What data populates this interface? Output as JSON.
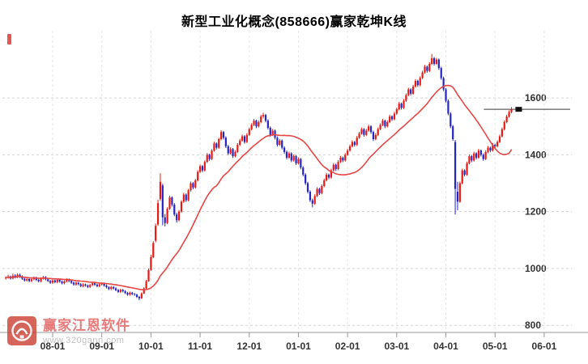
{
  "title": "新型工业化概念(858666)赢家乾坤K线",
  "watermark": {
    "brand": "赢家江恩软件",
    "url": "www.320gann.com"
  },
  "colors": {
    "up": "#e51a14",
    "down": "#2525c4",
    "ma": "#e84545",
    "grid": "#d2d2d2",
    "grid_vertical": "#e7e7e7",
    "axis": "#999999",
    "label": "#333333",
    "last_price_line": "#3a3a3a",
    "last_price_marker": "#111111",
    "corner_mark": "#df3a2e"
  },
  "chart_data": {
    "type": "candlestick",
    "title": "新型工业化概念(858666)赢家乾坤K线",
    "y_ticks": [
      800,
      1000,
      1200,
      1400,
      1600
    ],
    "ylim": [
      775,
      1845
    ],
    "grid": "dashed",
    "legend_position": "none",
    "overlay_line": "smoothed moving average (red)",
    "ma_period": 24,
    "last_price": 1560,
    "x_ticks": [
      {
        "label": "08-01",
        "slot": 20
      },
      {
        "label": "09-01",
        "slot": 41
      },
      {
        "label": "10-01",
        "slot": 62
      },
      {
        "label": "11-01",
        "slot": 83
      },
      {
        "label": "12-01",
        "slot": 104
      },
      {
        "label": "01-01",
        "slot": 125
      },
      {
        "label": "02-01",
        "slot": 146
      },
      {
        "label": "03-01",
        "slot": 167
      },
      {
        "label": "04-01",
        "slot": 188
      },
      {
        "label": "05-01",
        "slot": 209
      },
      {
        "label": "06-01",
        "slot": 230
      }
    ],
    "candles": [
      [
        965,
        972,
        961,
        968
      ],
      [
        968,
        978,
        964,
        972
      ],
      [
        972,
        975,
        961,
        965
      ],
      [
        965,
        982,
        962,
        975
      ],
      [
        975,
        980,
        965,
        970
      ],
      [
        970,
        983,
        966,
        978
      ],
      [
        978,
        982,
        967,
        971
      ],
      [
        971,
        976,
        960,
        964
      ],
      [
        964,
        969,
        954,
        958
      ],
      [
        958,
        968,
        954,
        963
      ],
      [
        963,
        967,
        952,
        956
      ],
      [
        956,
        966,
        952,
        962
      ],
      [
        962,
        972,
        958,
        968
      ],
      [
        968,
        971,
        956,
        960
      ],
      [
        960,
        965,
        951,
        955
      ],
      [
        955,
        969,
        951,
        965
      ],
      [
        965,
        974,
        961,
        970
      ],
      [
        970,
        973,
        958,
        962
      ],
      [
        962,
        967,
        952,
        956
      ],
      [
        956,
        960,
        946,
        950
      ],
      [
        950,
        962,
        946,
        958
      ],
      [
        958,
        961,
        948,
        952
      ],
      [
        952,
        964,
        948,
        960
      ],
      [
        960,
        963,
        950,
        954
      ],
      [
        954,
        958,
        944,
        948
      ],
      [
        948,
        959,
        944,
        955
      ],
      [
        955,
        966,
        951,
        962
      ],
      [
        962,
        965,
        952,
        956
      ],
      [
        956,
        960,
        946,
        950
      ],
      [
        950,
        954,
        940,
        944
      ],
      [
        944,
        954,
        940,
        950
      ],
      [
        950,
        953,
        941,
        945
      ],
      [
        945,
        949,
        934,
        938
      ],
      [
        938,
        948,
        934,
        944
      ],
      [
        944,
        947,
        936,
        940
      ],
      [
        940,
        944,
        931,
        935
      ],
      [
        935,
        946,
        931,
        942
      ],
      [
        942,
        952,
        938,
        948
      ],
      [
        948,
        951,
        939,
        943
      ],
      [
        943,
        947,
        934,
        938
      ],
      [
        938,
        948,
        934,
        944
      ],
      [
        944,
        952,
        940,
        948
      ],
      [
        948,
        951,
        936,
        940
      ],
      [
        940,
        944,
        930,
        934
      ],
      [
        934,
        938,
        924,
        928
      ],
      [
        928,
        939,
        924,
        935
      ],
      [
        935,
        938,
        926,
        930
      ],
      [
        930,
        934,
        920,
        924
      ],
      [
        924,
        928,
        914,
        918
      ],
      [
        918,
        929,
        914,
        925
      ],
      [
        925,
        928,
        916,
        920
      ],
      [
        920,
        924,
        910,
        914
      ],
      [
        914,
        918,
        904,
        908
      ],
      [
        908,
        919,
        904,
        915
      ],
      [
        915,
        918,
        906,
        910
      ],
      [
        910,
        914,
        904,
        908
      ],
      [
        908,
        911,
        896,
        900
      ],
      [
        900,
        904,
        888,
        895
      ],
      [
        895,
        916,
        893,
        912
      ],
      [
        912,
        934,
        910,
        930
      ],
      [
        930,
        960,
        928,
        955
      ],
      [
        955,
        1000,
        953,
        995
      ],
      [
        995,
        1048,
        992,
        1040
      ],
      [
        1040,
        1096,
        1036,
        1090
      ],
      [
        1098,
        1158,
        1092,
        1150
      ],
      [
        1155,
        1242,
        1150,
        1230
      ],
      [
        1245,
        1335,
        1238,
        1305
      ],
      [
        1292,
        1298,
        1152,
        1180
      ],
      [
        1180,
        1192,
        1148,
        1160
      ],
      [
        1160,
        1215,
        1156,
        1210
      ],
      [
        1210,
        1256,
        1206,
        1250
      ],
      [
        1250,
        1254,
        1218,
        1225
      ],
      [
        1225,
        1230,
        1184,
        1190
      ],
      [
        1190,
        1196,
        1162,
        1170
      ],
      [
        1170,
        1206,
        1166,
        1200
      ],
      [
        1200,
        1240,
        1196,
        1235
      ],
      [
        1235,
        1266,
        1231,
        1260
      ],
      [
        1260,
        1264,
        1234,
        1240
      ],
      [
        1240,
        1280,
        1236,
        1275
      ],
      [
        1275,
        1306,
        1271,
        1300
      ],
      [
        1300,
        1304,
        1279,
        1285
      ],
      [
        1285,
        1315,
        1281,
        1310
      ],
      [
        1310,
        1346,
        1306,
        1340
      ],
      [
        1340,
        1366,
        1336,
        1360
      ],
      [
        1360,
        1364,
        1339,
        1345
      ],
      [
        1345,
        1380,
        1341,
        1375
      ],
      [
        1375,
        1406,
        1371,
        1400
      ],
      [
        1400,
        1404,
        1379,
        1385
      ],
      [
        1385,
        1420,
        1381,
        1415
      ],
      [
        1415,
        1446,
        1411,
        1440
      ],
      [
        1440,
        1444,
        1419,
        1425
      ],
      [
        1425,
        1460,
        1421,
        1455
      ],
      [
        1455,
        1487,
        1451,
        1480
      ],
      [
        1480,
        1484,
        1454,
        1460
      ],
      [
        1460,
        1465,
        1424,
        1430
      ],
      [
        1430,
        1435,
        1399,
        1405
      ],
      [
        1405,
        1426,
        1401,
        1420
      ],
      [
        1420,
        1424,
        1389,
        1395
      ],
      [
        1395,
        1416,
        1391,
        1410
      ],
      [
        1410,
        1441,
        1406,
        1435
      ],
      [
        1435,
        1456,
        1431,
        1450
      ],
      [
        1450,
        1471,
        1446,
        1465
      ],
      [
        1465,
        1469,
        1439,
        1445
      ],
      [
        1445,
        1476,
        1441,
        1470
      ],
      [
        1470,
        1496,
        1466,
        1490
      ],
      [
        1490,
        1511,
        1486,
        1505
      ],
      [
        1505,
        1526,
        1501,
        1520
      ],
      [
        1520,
        1524,
        1494,
        1500
      ],
      [
        1500,
        1521,
        1496,
        1515
      ],
      [
        1515,
        1541,
        1511,
        1535
      ],
      [
        1535,
        1548,
        1528,
        1540
      ],
      [
        1540,
        1544,
        1514,
        1520
      ],
      [
        1520,
        1525,
        1489,
        1495
      ],
      [
        1495,
        1500,
        1464,
        1470
      ],
      [
        1470,
        1491,
        1466,
        1485
      ],
      [
        1485,
        1489,
        1454,
        1460
      ],
      [
        1460,
        1465,
        1429,
        1435
      ],
      [
        1435,
        1456,
        1431,
        1450
      ],
      [
        1450,
        1454,
        1419,
        1425
      ],
      [
        1425,
        1430,
        1404,
        1410
      ],
      [
        1410,
        1415,
        1384,
        1390
      ],
      [
        1390,
        1411,
        1386,
        1405
      ],
      [
        1405,
        1409,
        1374,
        1380
      ],
      [
        1380,
        1401,
        1376,
        1395
      ],
      [
        1395,
        1399,
        1364,
        1370
      ],
      [
        1370,
        1391,
        1366,
        1385
      ],
      [
        1385,
        1389,
        1349,
        1355
      ],
      [
        1355,
        1360,
        1324,
        1330
      ],
      [
        1330,
        1335,
        1294,
        1300
      ],
      [
        1300,
        1305,
        1264,
        1270
      ],
      [
        1270,
        1275,
        1234,
        1240
      ],
      [
        1240,
        1246,
        1215,
        1228
      ],
      [
        1228,
        1261,
        1224,
        1255
      ],
      [
        1255,
        1286,
        1251,
        1280
      ],
      [
        1280,
        1284,
        1259,
        1265
      ],
      [
        1265,
        1296,
        1261,
        1290
      ],
      [
        1290,
        1316,
        1286,
        1310
      ],
      [
        1310,
        1336,
        1306,
        1330
      ],
      [
        1330,
        1334,
        1314,
        1320
      ],
      [
        1320,
        1351,
        1316,
        1345
      ],
      [
        1345,
        1371,
        1341,
        1365
      ],
      [
        1365,
        1369,
        1344,
        1350
      ],
      [
        1350,
        1381,
        1346,
        1375
      ],
      [
        1375,
        1396,
        1371,
        1390
      ],
      [
        1390,
        1394,
        1374,
        1380
      ],
      [
        1380,
        1406,
        1376,
        1400
      ],
      [
        1400,
        1421,
        1396,
        1415
      ],
      [
        1415,
        1436,
        1411,
        1430
      ],
      [
        1430,
        1451,
        1426,
        1445
      ],
      [
        1445,
        1449,
        1429,
        1435
      ],
      [
        1435,
        1466,
        1431,
        1460
      ],
      [
        1460,
        1481,
        1456,
        1475
      ],
      [
        1475,
        1496,
        1471,
        1490
      ],
      [
        1490,
        1494,
        1464,
        1470
      ],
      [
        1470,
        1491,
        1466,
        1485
      ],
      [
        1485,
        1506,
        1481,
        1500
      ],
      [
        1500,
        1504,
        1474,
        1480
      ],
      [
        1480,
        1485,
        1449,
        1455
      ],
      [
        1455,
        1476,
        1451,
        1470
      ],
      [
        1470,
        1496,
        1466,
        1490
      ],
      [
        1490,
        1511,
        1486,
        1505
      ],
      [
        1505,
        1526,
        1501,
        1520
      ],
      [
        1520,
        1524,
        1494,
        1500
      ],
      [
        1500,
        1521,
        1496,
        1515
      ],
      [
        1515,
        1541,
        1511,
        1535
      ],
      [
        1535,
        1539,
        1519,
        1525
      ],
      [
        1525,
        1551,
        1521,
        1545
      ],
      [
        1545,
        1566,
        1541,
        1560
      ],
      [
        1560,
        1586,
        1556,
        1580
      ],
      [
        1580,
        1584,
        1559,
        1565
      ],
      [
        1565,
        1596,
        1561,
        1590
      ],
      [
        1590,
        1616,
        1586,
        1610
      ],
      [
        1610,
        1636,
        1606,
        1630
      ],
      [
        1630,
        1634,
        1609,
        1615
      ],
      [
        1615,
        1646,
        1611,
        1640
      ],
      [
        1640,
        1666,
        1636,
        1660
      ],
      [
        1660,
        1664,
        1639,
        1645
      ],
      [
        1645,
        1676,
        1641,
        1670
      ],
      [
        1670,
        1696,
        1666,
        1690
      ],
      [
        1690,
        1716,
        1686,
        1710
      ],
      [
        1710,
        1714,
        1689,
        1695
      ],
      [
        1695,
        1726,
        1691,
        1720
      ],
      [
        1720,
        1755,
        1716,
        1740
      ],
      [
        1740,
        1744,
        1714,
        1720
      ],
      [
        1720,
        1741,
        1716,
        1735
      ],
      [
        1735,
        1739,
        1699,
        1705
      ],
      [
        1705,
        1710,
        1664,
        1670
      ],
      [
        1670,
        1675,
        1624,
        1630
      ],
      [
        1630,
        1635,
        1584,
        1590
      ],
      [
        1590,
        1595,
        1539,
        1545
      ],
      [
        1545,
        1550,
        1494,
        1500
      ],
      [
        1500,
        1505,
        1449,
        1455
      ],
      [
        1445,
        1452,
        1190,
        1280
      ],
      [
        1270,
        1305,
        1205,
        1235
      ],
      [
        1235,
        1306,
        1231,
        1300
      ],
      [
        1300,
        1351,
        1296,
        1345
      ],
      [
        1345,
        1349,
        1324,
        1330
      ],
      [
        1330,
        1376,
        1326,
        1370
      ],
      [
        1370,
        1401,
        1366,
        1395
      ],
      [
        1395,
        1399,
        1374,
        1380
      ],
      [
        1380,
        1411,
        1376,
        1405
      ],
      [
        1405,
        1409,
        1384,
        1390
      ],
      [
        1390,
        1421,
        1386,
        1415
      ],
      [
        1415,
        1419,
        1394,
        1400
      ],
      [
        1400,
        1405,
        1379,
        1385
      ],
      [
        1385,
        1416,
        1381,
        1410
      ],
      [
        1410,
        1431,
        1406,
        1425
      ],
      [
        1425,
        1429,
        1409,
        1415
      ],
      [
        1415,
        1441,
        1411,
        1435
      ],
      [
        1435,
        1439,
        1424,
        1430
      ],
      [
        1430,
        1451,
        1426,
        1445
      ],
      [
        1445,
        1471,
        1441,
        1465
      ],
      [
        1465,
        1496,
        1461,
        1490
      ],
      [
        1490,
        1521,
        1486,
        1515
      ],
      [
        1515,
        1541,
        1511,
        1535
      ],
      [
        1535,
        1556,
        1531,
        1550
      ],
      [
        1550,
        1568,
        1546,
        1560
      ]
    ]
  }
}
